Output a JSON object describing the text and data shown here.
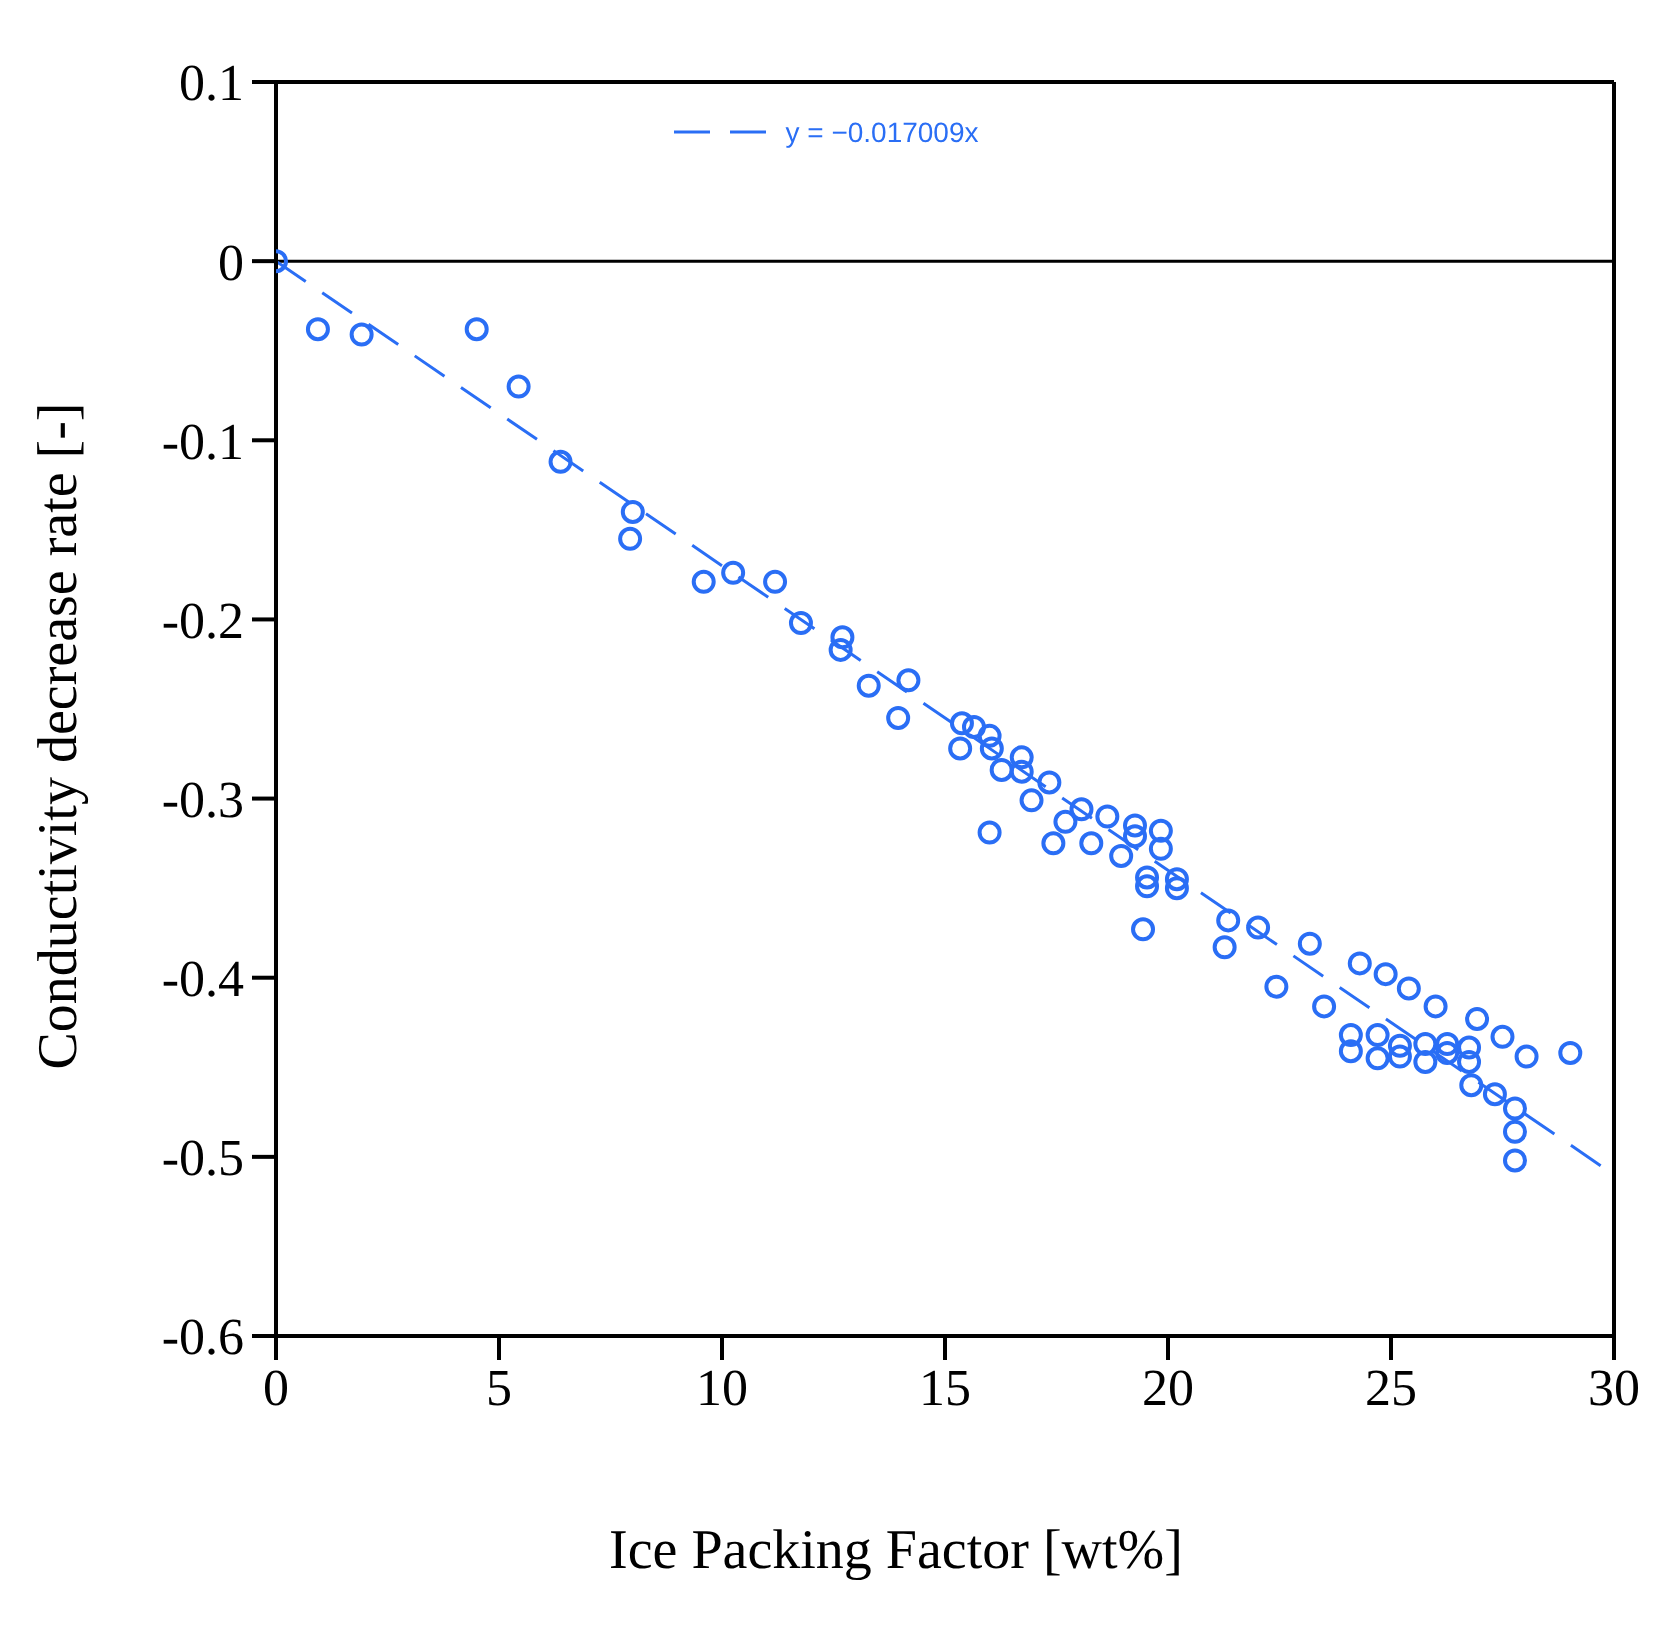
{
  "chart_data": {
    "type": "scatter",
    "xlabel": "Ice Packing Factor [wt%]",
    "ylabel": "Conductivity decrease rate [-]",
    "xlim": [
      0,
      30
    ],
    "xticks": [
      0,
      5,
      10,
      15,
      20,
      25,
      30
    ],
    "ylim": [
      -0.6,
      0.1
    ],
    "yticks": [
      -0.6,
      -0.5,
      -0.4,
      -0.3,
      -0.2,
      -0.1,
      0,
      0.1
    ],
    "grid": false,
    "legend": "top",
    "marker": "circle",
    "ref_lines": [
      {
        "axis": "y",
        "value": 0,
        "color": "#000000"
      }
    ],
    "series": [
      {
        "color": "#2a6ef5",
        "x": [
          0,
          0.94,
          1.92,
          4.5,
          5.44,
          6.38,
          8.0,
          7.94,
          9.59,
          10.25,
          11.19,
          11.77,
          12.66,
          12.7,
          13.29,
          13.95,
          14.18,
          15.38,
          15.34,
          15.65,
          16.0,
          16.05,
          16.0,
          16.27,
          16.72,
          16.72,
          16.94,
          17.34,
          17.43,
          17.7,
          18.06,
          18.28,
          18.64,
          18.95,
          19.26,
          19.26,
          19.53,
          19.53,
          19.44,
          19.84,
          19.84,
          20.2,
          20.2,
          21.35,
          21.27,
          22.02,
          22.43,
          23.18,
          23.5,
          24.1,
          24.1,
          24.3,
          24.7,
          24.7,
          24.88,
          25.2,
          25.2,
          25.4,
          25.77,
          25.77,
          26.0,
          26.26,
          26.26,
          26.75,
          26.75,
          26.8,
          26.93,
          27.33,
          27.5,
          27.78,
          27.78,
          27.78,
          28.04,
          29.02
        ],
        "values": [
          0,
          -0.038,
          -0.041,
          -0.038,
          -0.07,
          -0.112,
          -0.14,
          -0.155,
          -0.179,
          -0.174,
          -0.179,
          -0.202,
          -0.217,
          -0.21,
          -0.237,
          -0.255,
          -0.234,
          -0.258,
          -0.272,
          -0.26,
          -0.265,
          -0.272,
          -0.319,
          -0.284,
          -0.277,
          -0.285,
          -0.301,
          -0.291,
          -0.325,
          -0.313,
          -0.306,
          -0.325,
          -0.31,
          -0.332,
          -0.315,
          -0.321,
          -0.344,
          -0.349,
          -0.373,
          -0.318,
          -0.328,
          -0.345,
          -0.35,
          -0.368,
          -0.383,
          -0.372,
          -0.405,
          -0.381,
          -0.416,
          -0.432,
          -0.441,
          -0.392,
          -0.432,
          -0.445,
          -0.398,
          -0.438,
          -0.444,
          -0.406,
          -0.447,
          -0.437,
          -0.416,
          -0.442,
          -0.437,
          -0.439,
          -0.447,
          -0.46,
          -0.423,
          -0.465,
          -0.433,
          -0.473,
          -0.486,
          -0.502,
          -0.444,
          -0.442
        ]
      },
      {
        "type": "line",
        "name": "y = −0.017009x",
        "color": "#2a6ef5",
        "line_style": "dashed",
        "marker": "none",
        "x": [
          0,
          30
        ],
        "values": [
          0,
          -0.51
        ]
      }
    ]
  }
}
